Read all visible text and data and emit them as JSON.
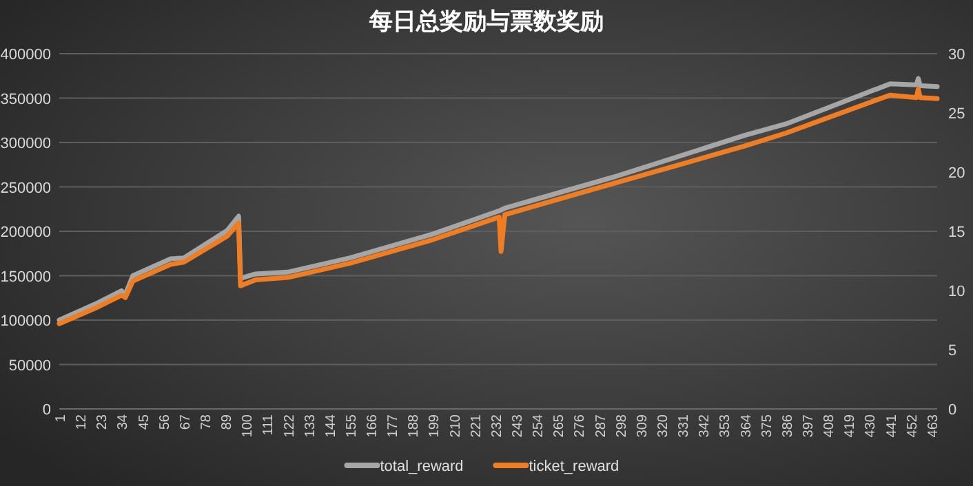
{
  "chart_data": {
    "type": "line",
    "title": "每日总奖励与票数奖励",
    "series": [
      {
        "name": "total_reward",
        "color": "#a6a6a6",
        "x": [
          1,
          20,
          34,
          36,
          40,
          60,
          67,
          90,
          96,
          97,
          105,
          122,
          155,
          199,
          234,
          237,
          296,
          364,
          386,
          441,
          455,
          456,
          457,
          466
        ],
        "values": [
          100000,
          118000,
          133000,
          129000,
          150000,
          169000,
          170000,
          201000,
          217000,
          147000,
          152000,
          154000,
          170000,
          197000,
          223000,
          226000,
          262000,
          308000,
          321000,
          366000,
          365000,
          372000,
          364000,
          363000
        ]
      },
      {
        "name": "ticket_reward",
        "color": "#f07d22",
        "axis": "y2",
        "x": [
          1,
          20,
          34,
          36,
          40,
          60,
          67,
          90,
          96,
          97,
          105,
          122,
          155,
          199,
          234,
          235,
          237,
          296,
          364,
          386,
          441,
          455,
          456,
          457,
          466
        ],
        "values": [
          7.2,
          8.5,
          9.6,
          9.4,
          10.8,
          12.2,
          12.4,
          14.6,
          15.7,
          10.4,
          10.9,
          11.1,
          12.3,
          14.3,
          16.2,
          13.3,
          16.4,
          19.1,
          22.2,
          23.3,
          26.5,
          26.3,
          27.0,
          26.3,
          26.2
        ]
      }
    ],
    "xlim": [
      1,
      466
    ],
    "xticks": [
      1,
      12,
      23,
      34,
      45,
      56,
      67,
      78,
      89,
      100,
      111,
      122,
      133,
      144,
      155,
      166,
      177,
      188,
      199,
      210,
      221,
      232,
      243,
      254,
      265,
      276,
      287,
      298,
      309,
      320,
      331,
      342,
      353,
      364,
      375,
      386,
      397,
      408,
      419,
      430,
      441,
      452,
      463
    ],
    "ylim": [
      0,
      400000
    ],
    "yticks": [
      0,
      50000,
      100000,
      150000,
      200000,
      250000,
      300000,
      350000,
      400000
    ],
    "y2lim": [
      0,
      30
    ],
    "y2ticks": [
      0,
      5,
      10,
      15,
      20,
      25,
      30
    ],
    "grid": "y",
    "legend": "bottom",
    "marker": "none",
    "line_style": "solid"
  }
}
